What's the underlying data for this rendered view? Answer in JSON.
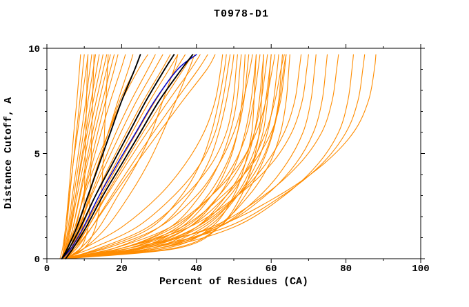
{
  "page": {
    "background": "#FFFFFF"
  },
  "chart_data": {
    "type": "line",
    "title": "T0978-D1",
    "xlabel": "Percent of Residues (CA)",
    "ylabel": "Distance Cutoff, A",
    "xlim": [
      0,
      100
    ],
    "ylim": [
      0,
      10
    ],
    "xticks": [
      0,
      20,
      40,
      60,
      80,
      100
    ],
    "xminor": [
      10,
      30,
      50,
      70,
      90
    ],
    "yticks": [
      0,
      5,
      10
    ],
    "yminor": [
      1,
      2,
      3,
      4,
      6,
      7,
      8,
      9
    ],
    "grid": false,
    "legend": "none",
    "styles": {
      "orange": {
        "hex": "#FF8C00",
        "width": 1.1
      },
      "black": {
        "hex": "#000000",
        "width": 1.9
      },
      "blue": {
        "hex": "#0000CC",
        "width": 1.5
      }
    },
    "y_knots": [
      0,
      0.5,
      1.5,
      3,
      4.5,
      6,
      7.5,
      9,
      9.7
    ],
    "series": [
      {
        "group": "orange",
        "x": [
          4,
          4.5,
          5,
          5.8,
          6.5,
          7.2,
          8,
          8.7,
          9
        ]
      },
      {
        "group": "orange",
        "x": [
          4,
          4.6,
          5.3,
          6.1,
          7,
          7.9,
          8.8,
          9.6,
          10
        ]
      },
      {
        "group": "orange",
        "x": [
          3.5,
          4.2,
          5,
          6,
          7,
          8.2,
          9.3,
          10.5,
          11
        ]
      },
      {
        "group": "orange",
        "x": [
          4,
          7,
          9.5,
          10,
          10.2,
          10.4,
          10.6,
          10.8,
          11
        ]
      },
      {
        "group": "orange",
        "x": [
          4,
          4.8,
          5.7,
          6.8,
          8,
          9.2,
          10.4,
          11.5,
          12
        ]
      },
      {
        "group": "orange",
        "x": [
          5,
          9,
          11,
          11.5,
          11.8,
          12,
          12.2,
          12.5,
          12.6
        ]
      },
      {
        "group": "orange",
        "x": [
          4,
          5,
          6,
          7.2,
          8.5,
          9.8,
          11,
          12.4,
          13
        ]
      },
      {
        "group": "orange",
        "x": [
          4.5,
          5.4,
          6.4,
          7.7,
          9,
          10.4,
          11.8,
          13.3,
          14
        ]
      },
      {
        "group": "orange",
        "x": [
          4,
          5,
          6.2,
          7.7,
          9.2,
          10.8,
          12.4,
          14.2,
          15
        ]
      },
      {
        "group": "orange",
        "x": [
          5,
          10,
          13,
          14.5,
          15,
          15.4,
          15.8,
          16.2,
          16.4
        ]
      },
      {
        "group": "orange",
        "x": [
          4,
          5.2,
          6.5,
          8.1,
          9.8,
          11.4,
          13.2,
          15.1,
          16
        ]
      },
      {
        "group": "orange",
        "x": [
          4.5,
          5.6,
          7,
          8.7,
          10.4,
          12.2,
          14,
          16,
          17
        ]
      },
      {
        "group": "orange",
        "x": [
          4,
          5.4,
          7,
          8.9,
          10.8,
          12.8,
          14.9,
          17,
          18
        ]
      },
      {
        "group": "orange",
        "x": [
          5,
          6.2,
          7.8,
          9.7,
          11.6,
          13.6,
          15.7,
          18,
          19
        ]
      },
      {
        "group": "orange",
        "x": [
          4,
          5.6,
          7.5,
          9.8,
          12.1,
          14.5,
          17,
          19.8,
          21
        ]
      },
      {
        "group": "orange",
        "x": [
          5,
          6.8,
          8.9,
          11.3,
          13.8,
          16.4,
          19,
          21.8,
          23
        ]
      },
      {
        "group": "orange",
        "x": [
          4,
          6,
          8.3,
          11,
          13.7,
          16.5,
          19.5,
          23.5,
          25
        ]
      },
      {
        "group": "orange",
        "x": [
          4,
          5.5,
          7.5,
          10,
          13,
          16.5,
          20,
          24.5,
          27
        ]
      },
      {
        "group": "orange",
        "x": [
          5,
          6.5,
          8.8,
          11.7,
          15,
          18.5,
          22.5,
          27,
          29
        ]
      },
      {
        "group": "orange",
        "x": [
          4,
          6,
          8.5,
          12,
          15.8,
          19.8,
          24,
          28.8,
          31
        ]
      },
      {
        "group": "orange",
        "x": [
          4.5,
          6.5,
          9.3,
          13,
          17,
          21.3,
          25.8,
          30.8,
          33
        ]
      },
      {
        "group": "orange",
        "x": [
          5,
          7,
          10,
          14,
          18.3,
          22.8,
          27.5,
          32.7,
          35
        ]
      },
      {
        "group": "orange",
        "x": [
          5,
          9,
          14,
          19,
          24,
          28,
          31,
          34,
          35
        ]
      },
      {
        "group": "orange",
        "x": [
          4,
          6.5,
          10,
          14.5,
          19.2,
          24,
          29,
          34.5,
          37
        ]
      },
      {
        "group": "orange",
        "x": [
          5,
          7.5,
          11,
          15.7,
          20.6,
          25.7,
          31,
          36.5,
          39
        ]
      },
      {
        "group": "orange",
        "x": [
          4,
          7,
          11,
          16,
          21.3,
          26.8,
          32.5,
          38.5,
          41
        ]
      },
      {
        "group": "orange",
        "x": [
          5,
          8,
          12,
          17.3,
          22.8,
          28.5,
          34.4,
          40.5,
          43
        ]
      },
      {
        "group": "orange",
        "x": [
          4,
          7.5,
          12,
          17.8,
          23.8,
          30,
          36.3,
          42.8,
          45
        ]
      },
      {
        "group": "orange",
        "x": [
          5,
          10,
          16,
          22,
          27,
          31,
          34.5,
          38,
          39.5
        ]
      },
      {
        "group": "orange",
        "x": [
          5,
          10,
          20,
          30,
          37,
          42,
          45,
          46.5,
          47
        ]
      },
      {
        "group": "orange",
        "x": [
          4,
          15,
          28,
          36,
          41,
          44,
          46,
          47.5,
          48
        ]
      },
      {
        "group": "orange",
        "x": [
          4,
          12,
          24,
          34,
          41,
          45,
          47,
          48.4,
          49
        ]
      },
      {
        "group": "orange",
        "x": [
          5,
          18,
          30,
          38,
          43,
          46,
          48,
          49.5,
          50
        ]
      },
      {
        "group": "orange",
        "x": [
          5,
          14,
          27,
          37,
          44,
          48,
          49.8,
          50.6,
          51
        ]
      },
      {
        "group": "orange",
        "x": [
          4,
          20,
          33,
          41,
          46,
          49,
          50.8,
          51.6,
          52
        ]
      },
      {
        "group": "orange",
        "x": [
          4,
          24,
          36,
          44,
          48.5,
          51,
          52.2,
          52.8,
          53
        ]
      },
      {
        "group": "orange",
        "x": [
          5,
          22,
          35,
          43,
          48,
          51,
          52.7,
          53.6,
          54
        ]
      },
      {
        "group": "orange",
        "x": [
          4,
          16,
          30,
          40,
          46,
          50,
          52.5,
          54.3,
          55
        ]
      },
      {
        "group": "orange",
        "x": [
          5,
          25,
          38,
          46,
          50.5,
          53,
          54.6,
          55.6,
          56
        ]
      },
      {
        "group": "orange",
        "x": [
          4,
          32,
          44,
          50,
          53,
          54.8,
          55.4,
          55.8,
          56
        ]
      },
      {
        "group": "orange",
        "x": [
          4,
          20,
          34,
          44,
          50,
          53.5,
          55.3,
          56.5,
          57
        ]
      },
      {
        "group": "orange",
        "x": [
          5,
          28,
          40,
          48,
          53,
          55.5,
          56.8,
          57.6,
          58
        ]
      },
      {
        "group": "orange",
        "x": [
          5,
          35,
          46,
          52,
          55,
          56.8,
          57.4,
          57.8,
          58
        ]
      },
      {
        "group": "orange",
        "x": [
          4,
          22,
          37,
          46,
          52,
          55.5,
          57.3,
          58.5,
          59
        ]
      },
      {
        "group": "orange",
        "x": [
          5,
          26,
          40,
          49,
          54,
          57,
          58.5,
          59.6,
          60
        ]
      },
      {
        "group": "orange",
        "x": [
          4,
          28,
          42,
          50.5,
          55,
          57.8,
          59,
          59.7,
          60
        ]
      },
      {
        "group": "orange",
        "x": [
          4,
          18,
          33,
          44,
          51.5,
          56,
          58.6,
          60.3,
          61
        ]
      },
      {
        "group": "orange",
        "x": [
          5,
          30,
          43,
          51,
          56,
          59,
          60.6,
          61.6,
          62
        ]
      },
      {
        "group": "orange",
        "x": [
          4,
          26,
          41,
          51,
          57,
          60.3,
          62,
          62.7,
          63
        ]
      },
      {
        "group": "orange",
        "x": [
          5,
          20,
          36,
          47,
          55,
          60,
          62.5,
          63.6,
          64
        ]
      },
      {
        "group": "orange",
        "x": [
          4,
          30,
          45,
          54,
          59.5,
          62.5,
          64,
          64.7,
          65
        ]
      },
      {
        "group": "orange",
        "x": [
          5,
          24,
          38,
          48,
          54.5,
          58.5,
          61,
          62.6,
          63.5
        ]
      },
      {
        "group": "orange",
        "x": [
          4,
          34,
          46,
          53,
          57.5,
          60.5,
          62.2,
          63.3,
          64
        ]
      },
      {
        "group": "orange",
        "x": [
          5,
          25,
          40,
          51,
          58.5,
          63.5,
          66.3,
          67.5,
          68
        ]
      },
      {
        "group": "orange",
        "x": [
          4,
          20,
          38,
          51,
          60,
          65.5,
          68.3,
          69.5,
          70
        ]
      },
      {
        "group": "orange",
        "x": [
          5,
          30,
          46,
          57,
          64,
          68.5,
          70.6,
          71.6,
          72
        ]
      },
      {
        "group": "orange",
        "x": [
          4,
          28,
          46,
          58.5,
          66.5,
          71.3,
          73.6,
          74.6,
          75
        ]
      },
      {
        "group": "orange",
        "x": [
          5,
          24,
          44,
          58,
          67.5,
          73.5,
          76.3,
          77.5,
          78
        ]
      },
      {
        "group": "orange",
        "x": [
          4,
          30,
          50,
          63.5,
          72.5,
          78,
          80.5,
          81.6,
          82
        ]
      },
      {
        "group": "orange",
        "x": [
          5,
          26,
          48,
          63,
          73.5,
          80,
          83.2,
          84.5,
          85
        ]
      },
      {
        "group": "orange",
        "x": [
          4,
          22,
          45,
          62,
          74,
          82,
          86,
          87.6,
          88
        ]
      },
      {
        "group": "blue",
        "x": [
          4,
          6.5,
          9.8,
          14,
          18.8,
          23.8,
          28.8,
          35,
          40
        ]
      },
      {
        "group": "black",
        "x": [
          4,
          5.5,
          8,
          11,
          14,
          17,
          20,
          23.5,
          25
        ]
      },
      {
        "group": "black",
        "x": [
          4,
          6,
          9,
          13,
          17.5,
          22,
          26.5,
          31.5,
          34
        ]
      },
      {
        "group": "black",
        "x": [
          5,
          7,
          10.5,
          15,
          20,
          25,
          30,
          36,
          39
        ]
      }
    ]
  }
}
